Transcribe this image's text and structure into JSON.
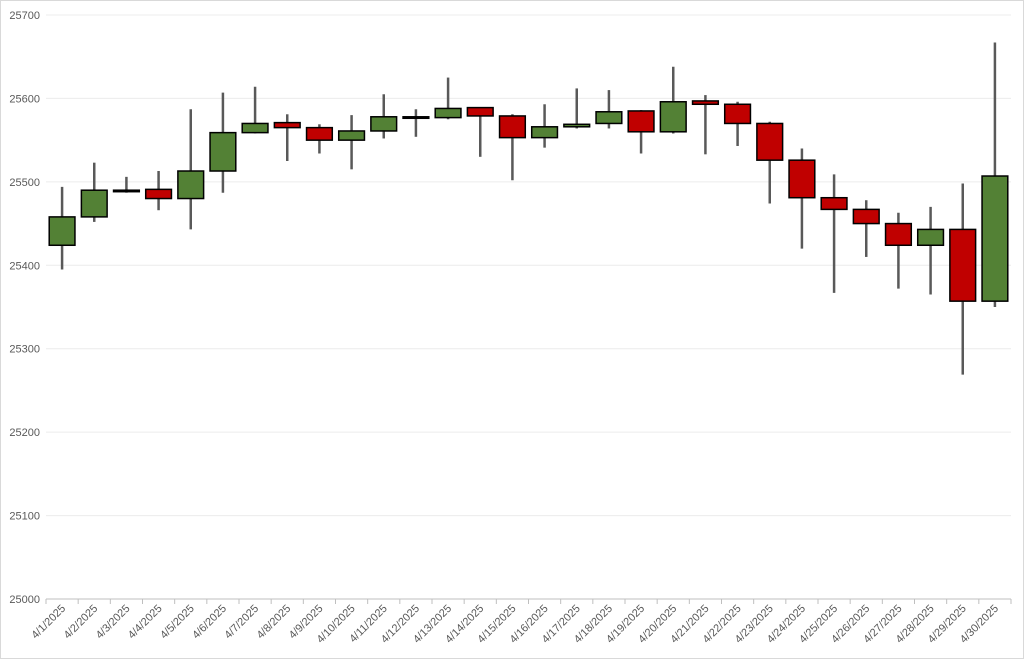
{
  "chart_data": {
    "type": "candlestick",
    "title": "",
    "xlabel": "",
    "ylabel": "",
    "ylim": [
      25000,
      25700
    ],
    "y_ticks": [
      25000,
      25100,
      25200,
      25300,
      25400,
      25500,
      25600,
      25700
    ],
    "grid": true,
    "colors": {
      "up": "#538135",
      "down": "#c00000",
      "wick": "#595959",
      "outline": "#000000"
    },
    "categories": [
      "4/1/2025",
      "4/2/2025",
      "4/3/2025",
      "4/4/2025",
      "4/5/2025",
      "4/6/2025",
      "4/7/2025",
      "4/8/2025",
      "4/9/2025",
      "4/10/2025",
      "4/11/2025",
      "4/12/2025",
      "4/13/2025",
      "4/14/2025",
      "4/15/2025",
      "4/16/2025",
      "4/17/2025",
      "4/18/2025",
      "4/19/2025",
      "4/20/2025",
      "4/21/2025",
      "4/22/2025",
      "4/23/2025",
      "4/24/2025",
      "4/25/2025",
      "4/26/2025",
      "4/27/2025",
      "4/28/2025",
      "4/29/2025",
      "4/30/2025"
    ],
    "open": [
      25424,
      25458,
      25490,
      25491,
      25480,
      25513,
      25559,
      25571,
      25565,
      25550,
      25561,
      25578,
      25577,
      25589,
      25579,
      25553,
      25566,
      25570,
      25585,
      25560,
      25597,
      25593,
      25570,
      25526,
      25481,
      25467,
      25450,
      25424,
      25443,
      25357
    ],
    "high": [
      25494,
      25523,
      25506,
      25513,
      25587,
      25607,
      25614,
      25581,
      25569,
      25580,
      25605,
      25587,
      25625,
      25589,
      25581,
      25593,
      25612,
      25610,
      25586,
      25638,
      25604,
      25596,
      25572,
      25540,
      25509,
      25478,
      25463,
      25470,
      25498,
      25667
    ],
    "low": [
      25395,
      25452,
      25487,
      25466,
      25443,
      25487,
      25558,
      25525,
      25534,
      25515,
      25552,
      25554,
      25575,
      25530,
      25502,
      25541,
      25564,
      25564,
      25534,
      25558,
      25533,
      25543,
      25474,
      25420,
      25367,
      25410,
      25372,
      25365,
      25269,
      25350
    ],
    "close": [
      25458,
      25490,
      25490,
      25480,
      25513,
      25559,
      25570,
      25565,
      25550,
      25561,
      25578,
      25577,
      25588,
      25579,
      25553,
      25566,
      25569,
      25584,
      25560,
      25596,
      25593,
      25570,
      25526,
      25481,
      25467,
      25450,
      25424,
      25443,
      25357,
      25507
    ]
  }
}
